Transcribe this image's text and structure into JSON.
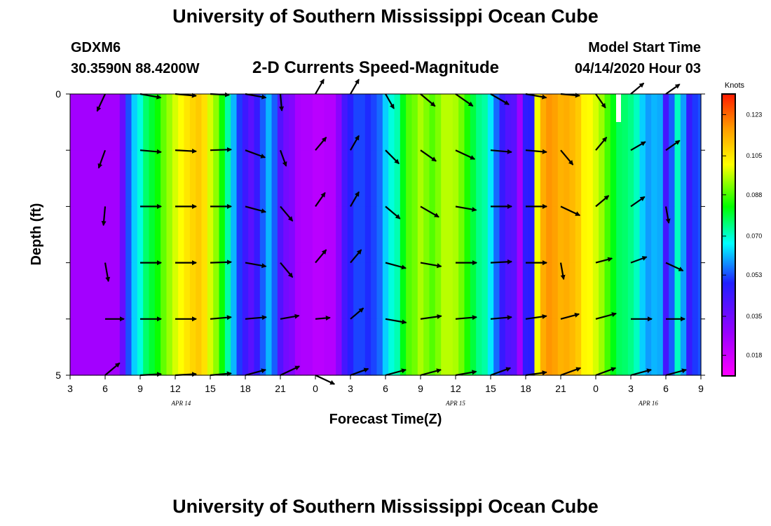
{
  "header": {
    "title": "University of Southern Mississippi Ocean Cube",
    "station_id": "GDXM6",
    "coordinates": "30.3590N 88.4200W",
    "subtitle": "2-D Currents Speed-Magnitude",
    "model_start_label": "Model Start Time",
    "model_start_value": "04/14/2020 Hour 03"
  },
  "footer": {
    "title": "University of Southern Mississippi Ocean Cube"
  },
  "chart_data": {
    "type": "heatmap",
    "title": "2-D Currents Speed-Magnitude",
    "xlabel": "Forecast Time(Z)",
    "ylabel": "Depth (ft)",
    "x_tick_labels": [
      "3",
      "6",
      "9",
      "12",
      "15",
      "18",
      "21",
      "0",
      "3",
      "6",
      "9",
      "12",
      "15",
      "18",
      "21",
      "0",
      "3",
      "6",
      "9"
    ],
    "x_tick_hours": [
      0,
      3,
      6,
      9,
      12,
      15,
      18,
      21,
      24,
      27,
      30,
      33,
      36,
      39,
      42,
      45,
      48,
      51,
      54
    ],
    "date_labels": [
      {
        "text": "APR 14",
        "hour": 9.5
      },
      {
        "text": "APR 15",
        "hour": 33
      },
      {
        "text": "APR 16",
        "hour": 49.5
      }
    ],
    "y_tick_labels": [
      "0",
      "5"
    ],
    "ylim": [
      0,
      5
    ],
    "xlim_hours": [
      0,
      54
    ],
    "colorbar": {
      "title": "Knots",
      "tick_labels": [
        "0.123",
        "0.105",
        "0.088",
        "0.070",
        "0.053",
        "0.035",
        "0.018"
      ],
      "tick_values": [
        0.123,
        0.105,
        0.088,
        0.07,
        0.053,
        0.035,
        0.018
      ],
      "range": [
        0.009,
        0.132
      ],
      "colors": [
        "#ff00ff",
        "#9a00ff",
        "#2020ff",
        "#00ffff",
        "#00ff00",
        "#ffff00",
        "#ff9900",
        "#ff1a00"
      ]
    },
    "depth_bins": [
      0.5,
      1.5,
      2.5,
      3.5,
      4.5
    ],
    "hours": [
      0,
      0.5,
      1,
      1.5,
      2,
      2.5,
      3,
      3.5,
      4,
      4.5,
      5,
      5.5,
      6,
      6.5,
      7,
      7.5,
      8,
      8.5,
      9,
      9.5,
      10,
      10.5,
      11,
      11.5,
      12,
      12.5,
      13,
      13.5,
      14,
      14.5,
      15,
      15.5,
      16,
      16.5,
      17,
      17.5,
      18,
      18.5,
      19,
      19.5,
      20,
      20.5,
      21,
      21.5,
      22,
      22.5,
      23,
      23.5,
      24,
      24.5,
      25,
      25.5,
      26,
      26.5,
      27,
      27.5,
      28,
      28.5,
      29,
      29.5,
      30,
      30.5,
      31,
      31.5,
      32,
      32.5,
      33,
      33.5,
      34,
      34.5,
      35,
      35.5,
      36,
      36.5,
      37,
      37.5,
      38,
      38.5,
      39,
      39.5,
      40,
      40.5,
      41,
      41.5,
      42,
      42.5,
      43,
      43.5,
      44,
      44.5,
      45,
      45.5,
      46,
      46.5,
      47,
      47.5,
      48,
      48.5,
      49,
      49.5,
      50,
      50.5,
      51,
      51.5,
      52,
      52.5,
      53,
      53.5,
      54
    ],
    "speed_rows": [
      [
        0.025,
        0.025,
        0.025,
        0.025,
        0.025,
        0.025,
        0.025,
        0.025,
        0.025,
        0.034,
        0.048,
        0.058,
        0.064,
        0.072,
        0.076,
        0.08,
        0.086,
        0.09,
        0.094,
        0.097,
        0.101,
        0.104,
        0.106,
        0.102,
        0.094,
        0.089,
        0.08,
        0.068,
        0.056,
        0.046,
        0.04,
        0.036,
        0.041,
        0.049,
        0.056,
        0.049,
        0.037,
        0.032,
        0.03,
        0.024,
        0.023,
        0.023,
        0.021,
        0.021,
        0.022,
        0.022,
        0.029,
        0.039,
        0.043,
        0.047,
        0.047,
        0.045,
        0.047,
        0.05,
        0.058,
        0.064,
        0.067,
        0.078,
        0.085,
        0.087,
        0.091,
        0.088,
        0.085,
        0.088,
        0.092,
        0.092,
        0.091,
        0.087,
        0.081,
        0.075,
        0.07,
        0.068,
        0.06,
        0.05,
        0.041,
        0.037,
        0.036,
        0.026,
        0.042,
        0.043,
        0.096,
        0.111,
        0.115,
        0.113,
        0.11,
        0.111,
        0.109,
        0.106,
        0.098,
        0.097,
        0.094,
        0.09,
        0.084,
        0.078,
        0.073,
        0.072,
        0.07,
        0.066,
        0.058,
        0.054,
        0.056,
        0.055,
        0.039,
        0.049,
        0.066,
        0.054,
        0.041,
        0.046,
        0.048
      ],
      [
        0.025,
        0.025,
        0.025,
        0.025,
        0.025,
        0.025,
        0.025,
        0.025,
        0.025,
        0.034,
        0.048,
        0.058,
        0.064,
        0.072,
        0.076,
        0.08,
        0.086,
        0.09,
        0.094,
        0.097,
        0.101,
        0.104,
        0.106,
        0.102,
        0.094,
        0.089,
        0.08,
        0.068,
        0.056,
        0.046,
        0.04,
        0.036,
        0.041,
        0.049,
        0.056,
        0.049,
        0.037,
        0.032,
        0.03,
        0.024,
        0.023,
        0.023,
        0.021,
        0.021,
        0.022,
        0.022,
        0.029,
        0.039,
        0.043,
        0.047,
        0.047,
        0.045,
        0.047,
        0.05,
        0.058,
        0.064,
        0.067,
        0.078,
        0.085,
        0.087,
        0.091,
        0.088,
        0.085,
        0.088,
        0.092,
        0.092,
        0.091,
        0.087,
        0.081,
        0.075,
        0.07,
        0.068,
        0.06,
        0.05,
        0.041,
        0.037,
        0.036,
        0.026,
        0.042,
        0.043,
        0.096,
        0.111,
        0.115,
        0.113,
        0.11,
        0.111,
        0.109,
        0.106,
        0.098,
        0.097,
        0.094,
        0.09,
        0.084,
        0.078,
        0.073,
        0.072,
        0.07,
        0.066,
        0.058,
        0.054,
        0.056,
        0.055,
        0.039,
        0.049,
        0.066,
        0.054,
        0.041,
        0.046,
        0.048
      ],
      [
        0.025,
        0.025,
        0.025,
        0.025,
        0.025,
        0.025,
        0.025,
        0.025,
        0.025,
        0.034,
        0.048,
        0.058,
        0.064,
        0.072,
        0.076,
        0.08,
        0.086,
        0.09,
        0.094,
        0.097,
        0.101,
        0.104,
        0.106,
        0.102,
        0.094,
        0.089,
        0.08,
        0.068,
        0.056,
        0.046,
        0.04,
        0.036,
        0.041,
        0.049,
        0.056,
        0.049,
        0.037,
        0.032,
        0.03,
        0.024,
        0.023,
        0.023,
        0.021,
        0.021,
        0.022,
        0.022,
        0.029,
        0.039,
        0.043,
        0.047,
        0.047,
        0.045,
        0.047,
        0.05,
        0.058,
        0.064,
        0.067,
        0.078,
        0.085,
        0.087,
        0.091,
        0.088,
        0.085,
        0.088,
        0.092,
        0.092,
        0.091,
        0.087,
        0.081,
        0.075,
        0.07,
        0.068,
        0.06,
        0.05,
        0.041,
        0.037,
        0.036,
        0.026,
        0.042,
        0.043,
        0.096,
        0.111,
        0.115,
        0.113,
        0.11,
        0.111,
        0.109,
        0.106,
        0.098,
        0.097,
        0.094,
        0.09,
        0.084,
        0.078,
        0.073,
        0.072,
        0.07,
        0.066,
        0.058,
        0.054,
        0.056,
        0.055,
        0.039,
        0.049,
        0.066,
        0.054,
        0.041,
        0.046,
        0.048
      ],
      [
        0.025,
        0.025,
        0.025,
        0.025,
        0.025,
        0.025,
        0.025,
        0.025,
        0.025,
        0.034,
        0.048,
        0.058,
        0.064,
        0.072,
        0.076,
        0.08,
        0.086,
        0.09,
        0.094,
        0.097,
        0.101,
        0.104,
        0.106,
        0.102,
        0.094,
        0.089,
        0.08,
        0.068,
        0.056,
        0.046,
        0.04,
        0.036,
        0.041,
        0.049,
        0.056,
        0.049,
        0.037,
        0.032,
        0.03,
        0.024,
        0.023,
        0.023,
        0.021,
        0.021,
        0.022,
        0.022,
        0.029,
        0.039,
        0.043,
        0.047,
        0.047,
        0.045,
        0.047,
        0.05,
        0.058,
        0.064,
        0.067,
        0.078,
        0.085,
        0.087,
        0.091,
        0.088,
        0.085,
        0.088,
        0.092,
        0.092,
        0.091,
        0.087,
        0.081,
        0.075,
        0.07,
        0.068,
        0.06,
        0.05,
        0.041,
        0.037,
        0.036,
        0.026,
        0.042,
        0.043,
        0.096,
        0.111,
        0.115,
        0.113,
        0.11,
        0.111,
        0.109,
        0.106,
        0.098,
        0.097,
        0.094,
        0.09,
        0.084,
        0.078,
        0.073,
        0.072,
        0.07,
        0.066,
        0.058,
        0.054,
        0.056,
        0.055,
        0.039,
        0.049,
        0.066,
        0.054,
        0.041,
        0.046,
        0.048
      ],
      [
        0.025,
        0.025,
        0.025,
        0.025,
        0.025,
        0.025,
        0.025,
        0.025,
        0.025,
        0.034,
        0.048,
        0.058,
        0.064,
        0.072,
        0.076,
        0.08,
        0.086,
        0.09,
        0.094,
        0.097,
        0.101,
        0.104,
        0.106,
        0.102,
        0.094,
        0.089,
        0.08,
        0.068,
        0.056,
        0.046,
        0.04,
        0.036,
        0.041,
        0.049,
        0.056,
        0.049,
        0.037,
        0.032,
        0.03,
        0.024,
        0.023,
        0.023,
        0.021,
        0.021,
        0.022,
        0.022,
        0.029,
        0.039,
        0.043,
        0.047,
        0.047,
        0.045,
        0.047,
        0.05,
        0.058,
        0.064,
        0.067,
        0.078,
        0.085,
        0.087,
        0.091,
        0.088,
        0.085,
        0.088,
        0.092,
        0.092,
        0.091,
        0.087,
        0.081,
        0.075,
        0.07,
        0.068,
        0.06,
        0.05,
        0.041,
        0.037,
        0.036,
        0.026,
        0.042,
        0.043,
        0.096,
        0.111,
        0.115,
        0.113,
        0.11,
        0.111,
        0.109,
        0.106,
        0.098,
        0.097,
        0.094,
        0.09,
        0.084,
        0.078,
        0.073,
        0.072,
        0.07,
        0.066,
        0.058,
        0.054,
        0.056,
        0.055,
        0.039,
        0.049,
        0.066,
        0.054,
        0.041,
        0.046,
        0.048
      ]
    ],
    "vector_hours": [
      3,
      6,
      9,
      12,
      15,
      18,
      21,
      24,
      27,
      30,
      33,
      36,
      39,
      42,
      45,
      48,
      51
    ],
    "vector_depths": [
      0,
      1,
      2,
      3,
      4,
      5
    ],
    "vector_angles_deg": [
      [
        115,
        10,
        5,
        3,
        10,
        85,
        -60,
        -60,
        60,
        40,
        35,
        30,
        10,
        5,
        55,
        -40,
        -35
      ],
      [
        110,
        5,
        3,
        -2,
        20,
        70,
        -50,
        -60,
        45,
        35,
        25,
        5,
        5,
        50,
        -50,
        -30,
        -35
      ],
      [
        95,
        0,
        0,
        0,
        15,
        50,
        -55,
        -60,
        40,
        30,
        10,
        0,
        0,
        25,
        -40,
        -35,
        80
      ],
      [
        80,
        0,
        0,
        -2,
        10,
        50,
        -50,
        -50,
        15,
        10,
        0,
        -3,
        0,
        80,
        -15,
        -20,
        25
      ],
      [
        0,
        0,
        0,
        -5,
        -5,
        -10,
        -5,
        -40,
        10,
        -8,
        -5,
        -5,
        -8,
        -15,
        -15,
        0,
        0
      ],
      [
        -40,
        -3,
        -3,
        -5,
        -15,
        -25,
        25,
        -20,
        -15,
        -15,
        -10,
        -20,
        -8,
        -20,
        -20,
        -15,
        -15
      ]
    ],
    "vector_lengths": [
      [
        0.9,
        1,
        1,
        0.9,
        1,
        0.8,
        0.8,
        0.8,
        0.8,
        0.9,
        1,
        1,
        1,
        0.9,
        0.8,
        0.8,
        0.8
      ],
      [
        0.9,
        1,
        1,
        1,
        1,
        0.8,
        0.8,
        0.8,
        0.9,
        0.9,
        1,
        1,
        1,
        0.9,
        0.8,
        0.8,
        0.8
      ],
      [
        0.9,
        1,
        1,
        1,
        1,
        0.9,
        0.8,
        0.8,
        0.9,
        1,
        1,
        1,
        1,
        1,
        0.8,
        0.8,
        0.8
      ],
      [
        0.9,
        1,
        1,
        1,
        1,
        0.9,
        0.8,
        0.8,
        1,
        1,
        1,
        1,
        1,
        0.8,
        0.8,
        0.8,
        0.9
      ],
      [
        0.9,
        1,
        1,
        1,
        1,
        0.9,
        0.7,
        0.8,
        1,
        1,
        1,
        1,
        1,
        0.9,
        1,
        1,
        0.9
      ],
      [
        0.9,
        1,
        1,
        1,
        1,
        1,
        1,
        0.9,
        1,
        1,
        1,
        1,
        1,
        1,
        1,
        1,
        1
      ]
    ]
  }
}
